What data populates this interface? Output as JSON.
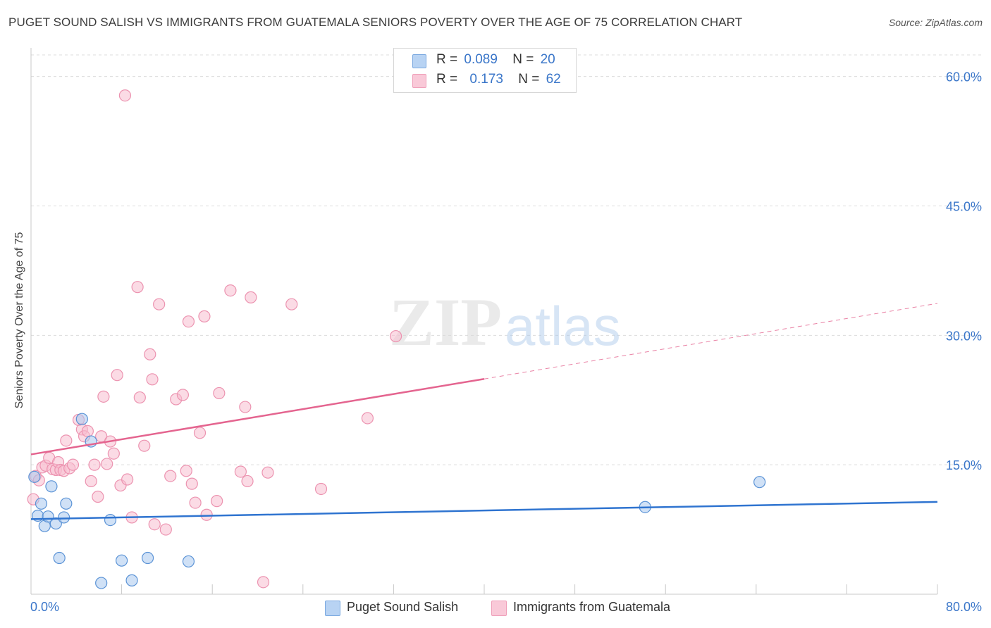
{
  "title": "PUGET SOUND SALISH VS IMMIGRANTS FROM GUATEMALA SENIORS POVERTY OVER THE AGE OF 75 CORRELATION CHART",
  "source": "Source: ZipAtlas.com",
  "watermark": {
    "zip": "ZIP",
    "atlas": "atlas"
  },
  "legend": {
    "series1": {
      "r_label": "R =",
      "r_value": "0.089",
      "n_label": "N =",
      "n_value": "20"
    },
    "series2": {
      "r_label": "R =",
      "r_value": "0.173",
      "n_label": "N =",
      "n_value": "62"
    }
  },
  "x_axis": {
    "min_label": "0.0%",
    "max_label": "80.0%"
  },
  "chart_data": {
    "type": "scatter",
    "title": "PUGET SOUND SALISH VS IMMIGRANTS FROM GUATEMALA SENIORS POVERTY OVER THE AGE OF 75 CORRELATION CHART",
    "xlabel": "",
    "ylabel": "Seniors Poverty Over the Age of 75",
    "xlim": [
      0,
      80
    ],
    "ylim": [
      0,
      62.5
    ],
    "y_ticks": [
      15,
      30,
      45,
      60
    ],
    "y_tick_labels": [
      "15.0%",
      "30.0%",
      "45.0%",
      "60.0%"
    ],
    "colors": {
      "blue_fill": "#a9c8ef",
      "blue_stroke": "#5b93d6",
      "blue_line": "#2f74d0",
      "pink_fill": "#f7bdd0",
      "pink_stroke": "#ec93b0",
      "pink_line": "#e4648f",
      "tick_text": "#3a76c9",
      "grid": "#dcdcdc"
    },
    "series": [
      {
        "name": "Puget Sound Salish",
        "color": "#a9c8ef",
        "points": [
          [
            0.3,
            13.6
          ],
          [
            0.6,
            9.1
          ],
          [
            0.9,
            10.5
          ],
          [
            1.2,
            7.9
          ],
          [
            1.5,
            9.0
          ],
          [
            1.8,
            12.5
          ],
          [
            2.2,
            8.2
          ],
          [
            2.5,
            4.2
          ],
          [
            2.9,
            8.9
          ],
          [
            3.1,
            10.5
          ],
          [
            4.5,
            20.3
          ],
          [
            5.3,
            17.7
          ],
          [
            6.2,
            1.3
          ],
          [
            7.0,
            8.6
          ],
          [
            8.0,
            3.9
          ],
          [
            8.9,
            1.6
          ],
          [
            10.3,
            4.2
          ],
          [
            13.9,
            3.8
          ],
          [
            54.2,
            10.1
          ],
          [
            64.3,
            13.0
          ]
        ],
        "trend": {
          "x": [
            0,
            80
          ],
          "y": [
            8.7,
            10.7
          ],
          "dashed_from": null
        }
      },
      {
        "name": "Immigrants from Guatemala",
        "color": "#f7bdd0",
        "points": [
          [
            0.2,
            11.0
          ],
          [
            0.4,
            13.7
          ],
          [
            0.7,
            13.2
          ],
          [
            1.0,
            14.7
          ],
          [
            1.3,
            14.9
          ],
          [
            1.6,
            15.8
          ],
          [
            1.9,
            14.5
          ],
          [
            2.2,
            14.4
          ],
          [
            2.4,
            15.3
          ],
          [
            2.6,
            14.4
          ],
          [
            2.9,
            14.3
          ],
          [
            3.1,
            17.8
          ],
          [
            3.4,
            14.6
          ],
          [
            3.7,
            15.0
          ],
          [
            4.2,
            20.2
          ],
          [
            4.5,
            19.1
          ],
          [
            4.7,
            18.3
          ],
          [
            5.0,
            18.9
          ],
          [
            5.3,
            13.1
          ],
          [
            5.6,
            15.0
          ],
          [
            5.9,
            11.3
          ],
          [
            6.2,
            18.3
          ],
          [
            6.4,
            22.9
          ],
          [
            6.7,
            15.1
          ],
          [
            7.0,
            17.7
          ],
          [
            7.3,
            16.3
          ],
          [
            7.6,
            25.4
          ],
          [
            7.9,
            12.6
          ],
          [
            8.3,
            57.8
          ],
          [
            8.5,
            13.3
          ],
          [
            8.9,
            8.9
          ],
          [
            9.4,
            35.6
          ],
          [
            9.6,
            22.8
          ],
          [
            10.0,
            17.2
          ],
          [
            10.5,
            27.8
          ],
          [
            10.7,
            24.9
          ],
          [
            10.9,
            8.1
          ],
          [
            11.3,
            33.6
          ],
          [
            11.9,
            7.5
          ],
          [
            12.3,
            13.7
          ],
          [
            12.8,
            22.6
          ],
          [
            13.4,
            23.1
          ],
          [
            13.7,
            14.3
          ],
          [
            13.9,
            31.6
          ],
          [
            14.2,
            12.8
          ],
          [
            14.5,
            10.6
          ],
          [
            14.9,
            18.7
          ],
          [
            15.3,
            32.2
          ],
          [
            15.5,
            9.2
          ],
          [
            16.4,
            10.8
          ],
          [
            16.6,
            23.3
          ],
          [
            17.6,
            35.2
          ],
          [
            18.5,
            14.2
          ],
          [
            18.9,
            21.7
          ],
          [
            19.1,
            13.1
          ],
          [
            19.4,
            34.4
          ],
          [
            20.5,
            1.4
          ],
          [
            20.9,
            14.1
          ],
          [
            23.0,
            33.6
          ],
          [
            25.6,
            12.2
          ],
          [
            29.7,
            20.4
          ],
          [
            32.2,
            29.9
          ]
        ],
        "trend": {
          "x": [
            0,
            80
          ],
          "y": [
            16.2,
            33.7
          ],
          "dashed_from": 40
        }
      }
    ]
  }
}
